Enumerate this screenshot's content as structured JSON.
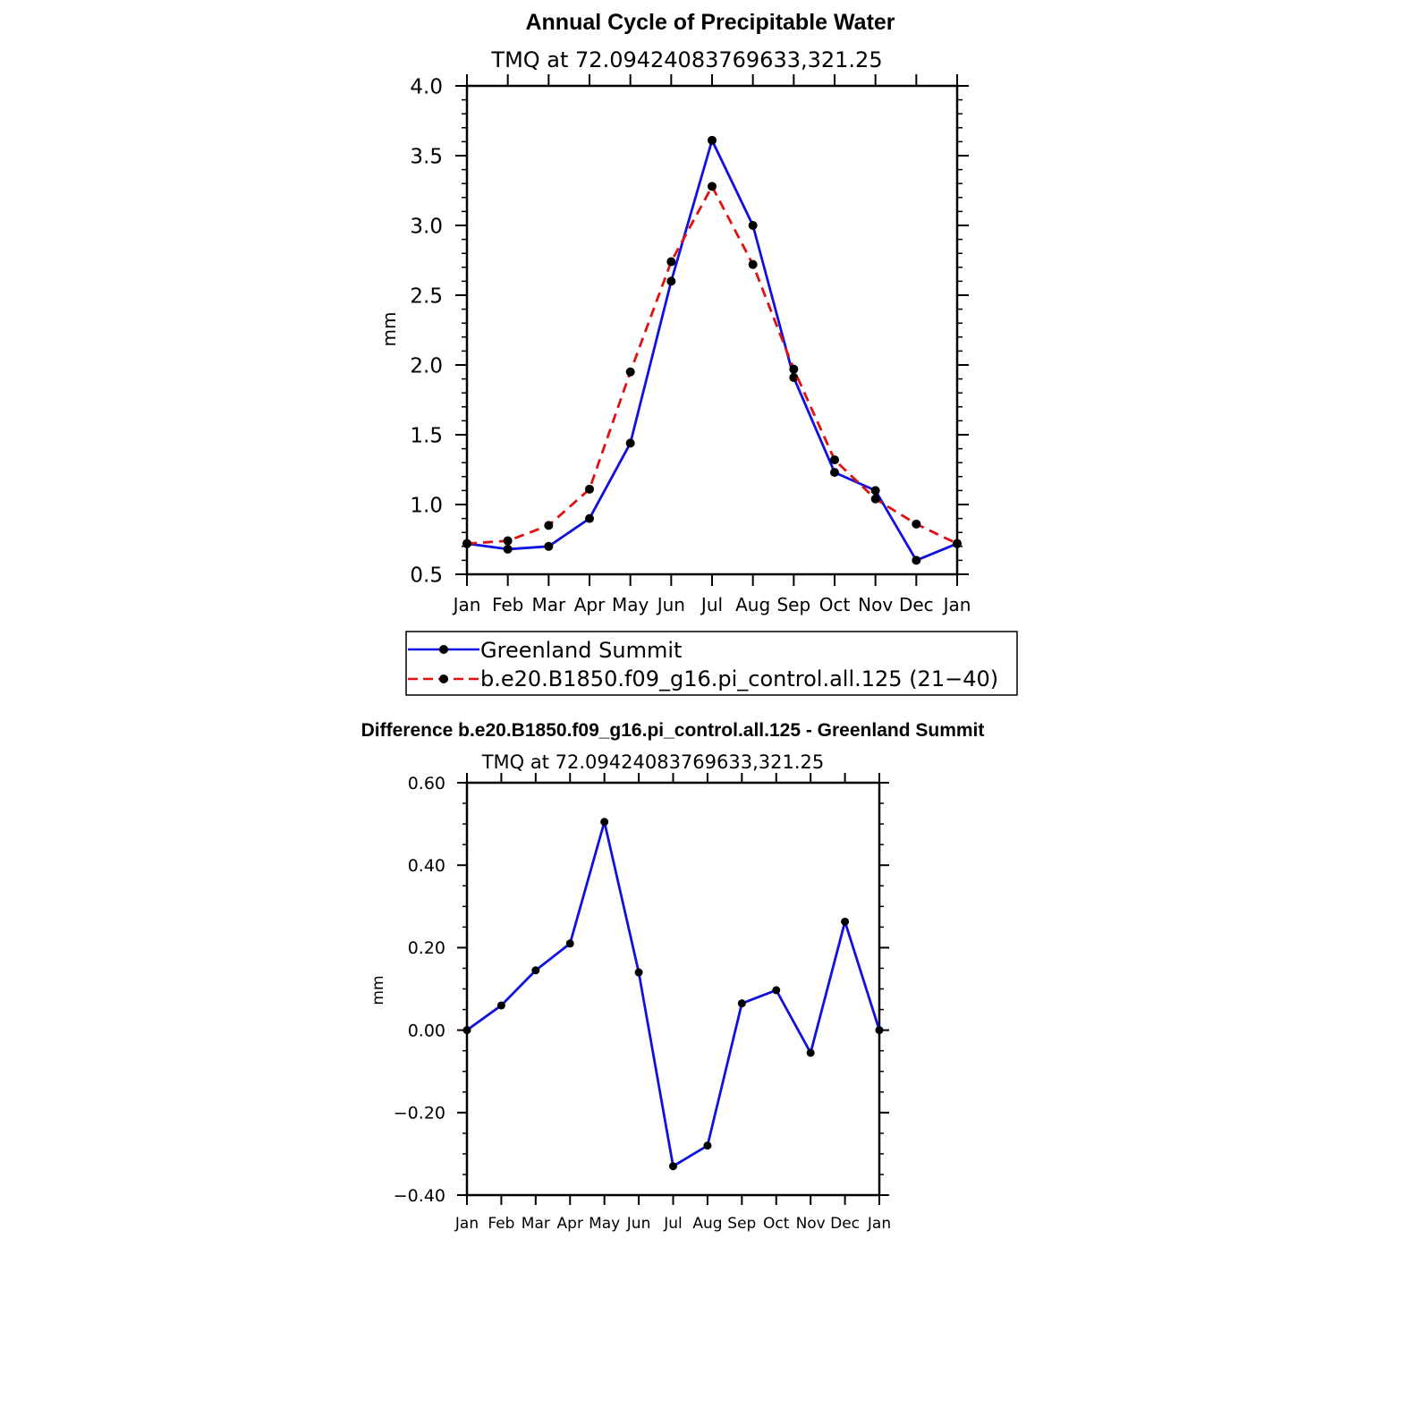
{
  "chart_data": [
    {
      "type": "line",
      "title": "Annual Cycle of Precipitable Water",
      "subtitle": "TMQ at 72.09424083769633,321.25",
      "ylabel": "mm",
      "xlabel": "",
      "categories": [
        "Jan",
        "Feb",
        "Mar",
        "Apr",
        "May",
        "Jun",
        "Jul",
        "Aug",
        "Sep",
        "Oct",
        "Nov",
        "Dec",
        "Jan"
      ],
      "ylim": [
        0.5,
        4.0
      ],
      "yticks": [
        "0.5",
        "1.0",
        "1.5",
        "2.0",
        "2.5",
        "3.0",
        "3.5",
        "4.0"
      ],
      "grid": false,
      "legend_position": "below",
      "series": [
        {
          "name": "Greenland Summit",
          "color": "#1010e0",
          "dash": "solid",
          "values": [
            0.72,
            0.68,
            0.7,
            0.9,
            1.44,
            2.6,
            3.61,
            3.0,
            1.91,
            1.23,
            1.1,
            0.6,
            0.72
          ]
        },
        {
          "name": "b.e20.B1850.f09_g16.pi_control.all.125 (21−40)",
          "color": "#e01010",
          "dash": "dashed",
          "values": [
            0.72,
            0.74,
            0.85,
            1.11,
            1.95,
            2.74,
            3.28,
            2.72,
            1.97,
            1.32,
            1.04,
            0.86,
            0.72
          ]
        }
      ]
    },
    {
      "type": "line",
      "title": "Difference b.e20.B1850.f09_g16.pi_control.all.125 - Greenland Summit",
      "subtitle": "TMQ at 72.09424083769633,321.25",
      "ylabel": "mm",
      "xlabel": "",
      "categories": [
        "Jan",
        "Feb",
        "Mar",
        "Apr",
        "May",
        "Jun",
        "Jul",
        "Aug",
        "Sep",
        "Oct",
        "Nov",
        "Dec",
        "Jan"
      ],
      "ylim": [
        -0.4,
        0.6
      ],
      "yticks": [
        "−0.40",
        "−0.20",
        "0.00",
        "0.20",
        "0.40",
        "0.60"
      ],
      "grid": false,
      "series": [
        {
          "name": "",
          "color": "#1010e0",
          "dash": "solid",
          "values": [
            0.0,
            0.06,
            0.145,
            0.21,
            0.505,
            0.14,
            -0.33,
            -0.28,
            0.065,
            0.097,
            -0.055,
            0.263,
            0.0
          ]
        }
      ]
    }
  ]
}
